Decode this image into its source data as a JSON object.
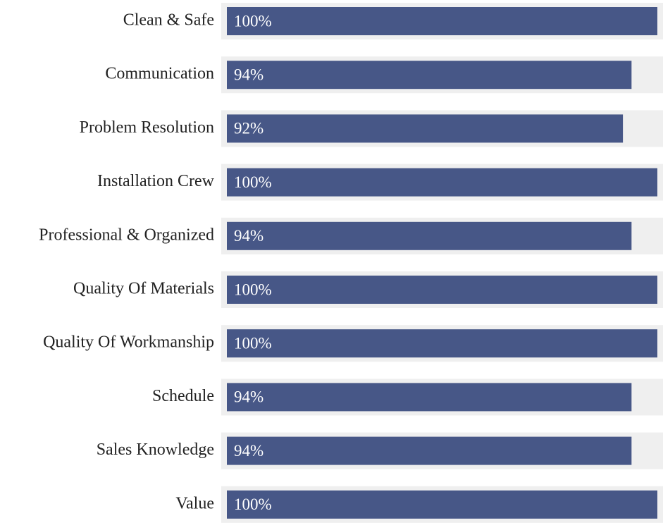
{
  "chart_data": {
    "type": "bar",
    "orientation": "horizontal",
    "categories": [
      "Clean & Safe",
      "Communication",
      "Problem Resolution",
      "Installation Crew",
      "Professional & Organized",
      "Quality Of Materials",
      "Quality Of Workmanship",
      "Schedule",
      "Sales Knowledge",
      "Value"
    ],
    "values": [
      100,
      94,
      92,
      100,
      94,
      100,
      100,
      94,
      94,
      100
    ],
    "value_labels": [
      "100%",
      "94%",
      "92%",
      "100%",
      "94%",
      "100%",
      "100%",
      "94%",
      "94%",
      "100%"
    ],
    "xlim": [
      0,
      100
    ],
    "color": "#475787",
    "track_color": "#efefef"
  }
}
